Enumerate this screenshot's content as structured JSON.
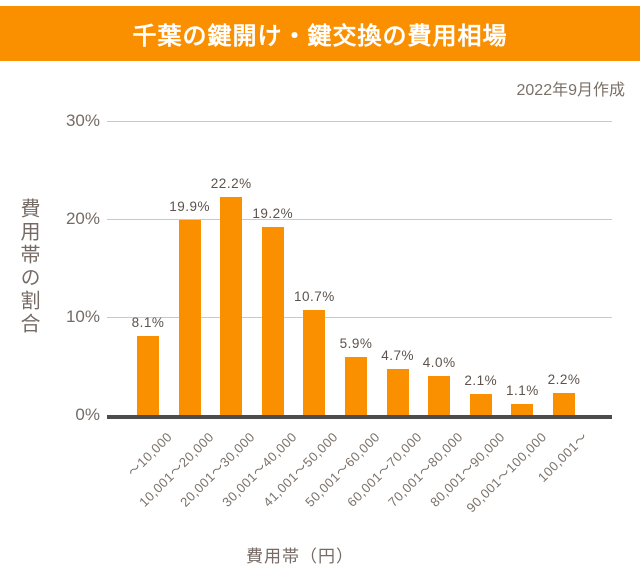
{
  "banner": {
    "title": "千葉の鍵開け・鍵交換の費用相場",
    "bg_color": "#FA9000",
    "text_color": "#ffffff"
  },
  "meta": {
    "created_note": "2022年9月作成"
  },
  "chart_data": {
    "type": "bar",
    "title": "千葉の鍵開け・鍵交換の費用相場",
    "categories": [
      "～10,000",
      "10,001～20,000",
      "20,001～30,000",
      "30,001～40,000",
      "41,001～50,000",
      "50,001～60,000",
      "60,001～70,000",
      "70,001～80,000",
      "80,001～90,000",
      "90,001～100,000",
      "100,001～"
    ],
    "values": [
      8.1,
      19.9,
      22.2,
      19.2,
      10.7,
      5.9,
      4.7,
      4.0,
      2.1,
      1.1,
      2.2
    ],
    "value_labels": [
      "8.1%",
      "19.9%",
      "22.2%",
      "19.2%",
      "10.7%",
      "5.9%",
      "4.7%",
      "4.0%",
      "2.1%",
      "1.1%",
      "2.2%"
    ],
    "xlabel": "費用帯（円）",
    "ylabel": "費用帯の割合",
    "ylim": [
      0,
      30
    ],
    "ytick_labels": [
      "0%",
      "10%",
      "20%",
      "30%"
    ],
    "ytick_values": [
      0,
      10,
      20,
      30
    ],
    "grid": true,
    "legend": "none",
    "bar_color": "#FA9000",
    "baseline_color": "#4c4c4c",
    "gridline_color": "#c9c9c9",
    "axis_text_color": "#756b64",
    "value_text_color": "#5d534c"
  }
}
